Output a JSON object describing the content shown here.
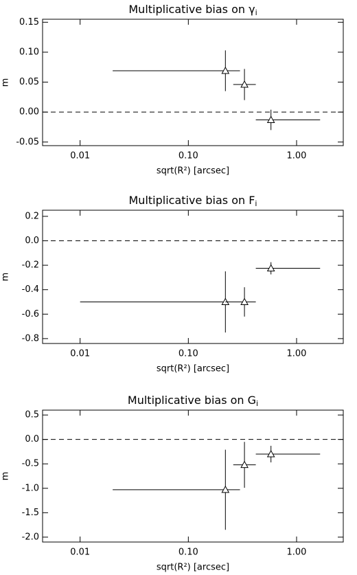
{
  "chart_data": [
    {
      "type": "errorbar",
      "title": "Multiplicative bias on γ",
      "title_sub": "i",
      "x_label": "sqrt(R²) [arcsec]",
      "y_label": "m",
      "xscale": "log",
      "zero_line": true,
      "color": "#000000",
      "xlim": [
        0.0045,
        2.7
      ],
      "xticks": [
        {
          "value": 0.01,
          "label": "0.01"
        },
        {
          "value": 0.1,
          "label": "0.10"
        },
        {
          "value": 1,
          "label": "1.00"
        }
      ],
      "ylim": [
        -0.056,
        0.155
      ],
      "yticks": [
        -0.05,
        {
          "value": 0,
          "label": "0.00"
        },
        0.05,
        {
          "value": 0.1,
          "label": "0.10"
        },
        0.15
      ],
      "x": [
        0.22,
        0.33,
        0.58
      ],
      "values": [
        0.069,
        0.046,
        -0.013
      ],
      "yerr": [
        0.034,
        0.026,
        0.017
      ],
      "xmin": [
        0.02,
        0.26,
        0.42
      ],
      "xmax": [
        0.3,
        0.42,
        1.65
      ]
    },
    {
      "type": "errorbar",
      "title": "Multiplicative bias on F",
      "title_sub": "i",
      "x_label": "sqrt(R²) [arcsec]",
      "y_label": "m",
      "xscale": "log",
      "zero_line": true,
      "color": "#000000",
      "xlim": [
        0.0045,
        2.7
      ],
      "xticks": [
        {
          "value": 0.01,
          "label": "0.01"
        },
        {
          "value": 0.1,
          "label": "0.10"
        },
        {
          "value": 1,
          "label": "1.00"
        }
      ],
      "ylim": [
        -0.84,
        0.25
      ],
      "yticks": [
        -0.8,
        -0.6,
        -0.4,
        -0.2,
        {
          "value": 0,
          "label": "0.0"
        },
        0.2
      ],
      "x": [
        0.22,
        0.33,
        0.58
      ],
      "values": [
        -0.5,
        -0.5,
        -0.225
      ],
      "yerr": [
        0.25,
        0.12,
        0.05
      ],
      "xmin": [
        0.01,
        0.22,
        0.42
      ],
      "xmax": [
        0.3,
        0.42,
        1.65
      ]
    },
    {
      "type": "errorbar",
      "title": "Multiplicative bias on G",
      "title_sub": "i",
      "x_label": "sqrt(R²) [arcsec]",
      "y_label": "m",
      "xscale": "log",
      "zero_line": true,
      "color": "#000000",
      "xlim": [
        0.0045,
        2.7
      ],
      "xticks": [
        {
          "value": 0.01,
          "label": "0.01"
        },
        {
          "value": 0.1,
          "label": "0.10"
        },
        {
          "value": 1,
          "label": "1.00"
        }
      ],
      "ylim": [
        -2.1,
        0.6
      ],
      "yticks": [
        {
          "value": -2,
          "label": "-2.0"
        },
        -1.5,
        {
          "value": -1,
          "label": "-1.0"
        },
        -0.5,
        {
          "value": 0,
          "label": "0.0"
        },
        0.5
      ],
      "x": [
        0.22,
        0.33,
        0.58
      ],
      "values": [
        -1.03,
        -0.52,
        -0.3
      ],
      "yerr": [
        0.82,
        0.47,
        0.17
      ],
      "xmin": [
        0.02,
        0.26,
        0.42
      ],
      "xmax": [
        0.3,
        0.42,
        1.65
      ]
    }
  ]
}
